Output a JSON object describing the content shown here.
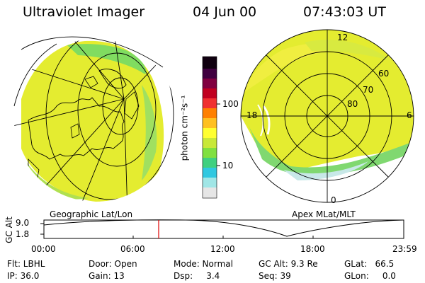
{
  "header": {
    "instrument": "Ultraviolet Imager",
    "date": "04 Jun 00",
    "time": "07:43:03 UT"
  },
  "panels": {
    "left_label": "Geographic Lat/Lon",
    "right_label": "Apex MLat/MLT"
  },
  "polar_labels": {
    "mlt_12": "12",
    "mlt_18": "18",
    "mlt_6": "6",
    "mlt_0": "0",
    "lat_60": "60",
    "lat_70": "70",
    "lat_80": "80"
  },
  "colorbar": {
    "unit_label": "photon cm⁻²s⁻¹",
    "tick_100": "100",
    "tick_10": "10",
    "colors": [
      "#e6e6e6",
      "#a0e6e6",
      "#30c8e0",
      "#40d080",
      "#80e040",
      "#c8e838",
      "#ffff30",
      "#ffc020",
      "#ff8000",
      "#f03030",
      "#c00020",
      "#800040",
      "#400040",
      "#100010"
    ]
  },
  "timeline": {
    "axis_label": "GC Alt",
    "y_top": "9.0",
    "y_bottom": "1.8",
    "ticks": [
      "00:00",
      "06:00",
      "12:00",
      "18:00",
      "23:59"
    ],
    "marker_color": "#e00000"
  },
  "info": {
    "col1": [
      "Flt: LBHL",
      "IP: 36.0"
    ],
    "col2": [
      "Door: Open",
      "Gain: 13"
    ],
    "col3": [
      "Mode: Normal",
      "Dsp:     3.4"
    ],
    "col4": [
      "GC Alt: 9.3 Re",
      "Seq: 39"
    ],
    "col5": [
      "GLat:   66.5",
      "GLon:     0.0"
    ]
  }
}
